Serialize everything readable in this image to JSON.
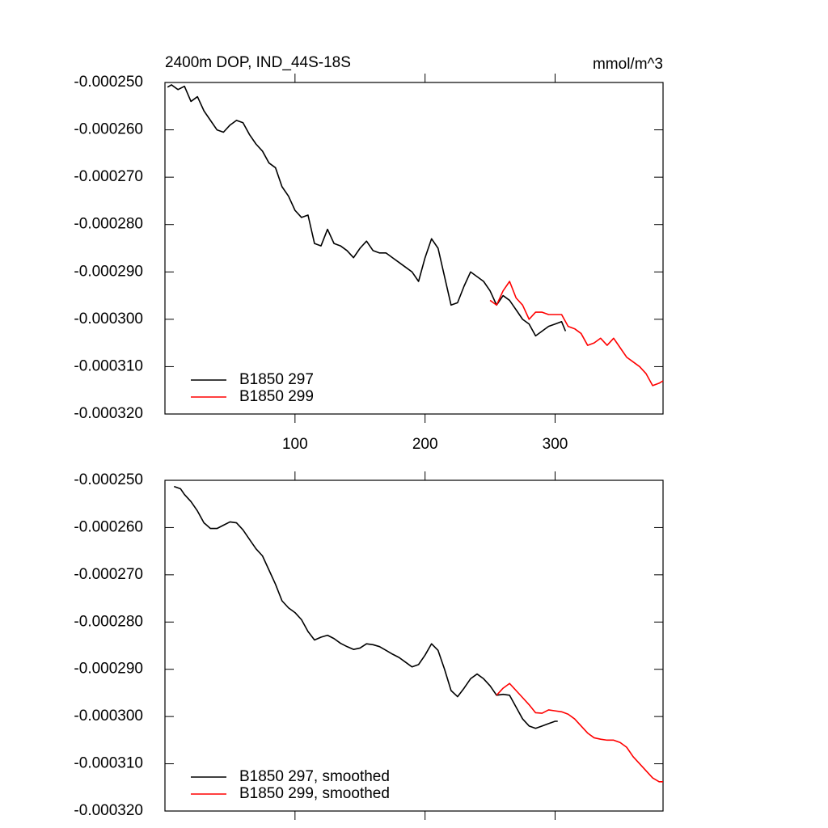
{
  "chart_data": [
    {
      "type": "line",
      "title": "2400m DOP, IND_44S-18S",
      "units": "mmol/m^3",
      "xlim": [
        0,
        383
      ],
      "xticks": [
        100,
        200,
        300
      ],
      "xtick_labels": true,
      "ylim": [
        -0.00032,
        -0.00025
      ],
      "yticks": [
        {
          "value": -0.00032,
          "label": "-0.000320"
        },
        {
          "value": -0.00031,
          "label": "-0.000310"
        },
        {
          "value": -0.0003,
          "label": "-0.000300"
        },
        {
          "value": -0.00029,
          "label": "-0.000290"
        },
        {
          "value": -0.00028,
          "label": "-0.000280"
        },
        {
          "value": -0.00027,
          "label": "-0.000270"
        },
        {
          "value": -0.00026,
          "label": "-0.000260"
        },
        {
          "value": -0.00025,
          "label": "-0.000250"
        }
      ],
      "legend": "lower left",
      "series": [
        {
          "name": "B1850 297",
          "color": "#000000",
          "x": [
            2,
            5,
            10,
            15,
            20,
            25,
            30,
            35,
            40,
            45,
            50,
            55,
            60,
            65,
            70,
            75,
            80,
            85,
            90,
            95,
            100,
            105,
            110,
            115,
            120,
            125,
            130,
            135,
            140,
            145,
            150,
            155,
            160,
            165,
            170,
            175,
            180,
            185,
            190,
            195,
            200,
            205,
            210,
            215,
            220,
            225,
            230,
            235,
            240,
            245,
            250,
            255,
            260,
            265,
            270,
            275,
            280,
            285,
            290,
            295,
            300,
            305,
            308
          ],
          "values": [
            -0.000251,
            -0.0002505,
            -0.0002515,
            -0.0002508,
            -0.000254,
            -0.000253,
            -0.000256,
            -0.000258,
            -0.00026,
            -0.0002605,
            -0.000259,
            -0.000258,
            -0.0002585,
            -0.000261,
            -0.000263,
            -0.0002645,
            -0.000267,
            -0.000268,
            -0.000272,
            -0.000274,
            -0.000277,
            -0.0002785,
            -0.000278,
            -0.000284,
            -0.0002845,
            -0.000281,
            -0.000284,
            -0.0002845,
            -0.0002855,
            -0.000287,
            -0.000285,
            -0.0002835,
            -0.0002855,
            -0.000286,
            -0.000286,
            -0.000287,
            -0.000288,
            -0.000289,
            -0.00029,
            -0.000292,
            -0.000287,
            -0.000283,
            -0.000285,
            -0.000291,
            -0.000297,
            -0.0002965,
            -0.000293,
            -0.00029,
            -0.000291,
            -0.000292,
            -0.000294,
            -0.000297,
            -0.000295,
            -0.000296,
            -0.000298,
            -0.0003,
            -0.000301,
            -0.0003035,
            -0.0003025,
            -0.0003015,
            -0.000301,
            -0.0003005,
            -0.0003025
          ]
        },
        {
          "name": "B1850 299",
          "color": "#ff0000",
          "x": [
            250,
            255,
            260,
            265,
            270,
            275,
            280,
            285,
            290,
            295,
            300,
            305,
            310,
            315,
            320,
            325,
            330,
            335,
            340,
            345,
            350,
            355,
            360,
            365,
            370,
            375,
            380,
            383
          ],
          "values": [
            -0.000296,
            -0.000297,
            -0.000294,
            -0.000292,
            -0.0002955,
            -0.000297,
            -0.0003,
            -0.0002985,
            -0.0002985,
            -0.000299,
            -0.000299,
            -0.000299,
            -0.0003015,
            -0.000302,
            -0.000303,
            -0.0003055,
            -0.000305,
            -0.000304,
            -0.0003055,
            -0.000304,
            -0.000306,
            -0.000308,
            -0.000309,
            -0.00031,
            -0.0003115,
            -0.000314,
            -0.0003135,
            -0.000313
          ]
        }
      ]
    },
    {
      "type": "line",
      "xlim": [
        0,
        383
      ],
      "xticks": [
        100,
        200,
        300
      ],
      "xtick_labels": false,
      "ylim": [
        -0.00032,
        -0.00025
      ],
      "yticks": [
        {
          "value": -0.00032,
          "label": "-0.000320"
        },
        {
          "value": -0.00031,
          "label": "-0.000310"
        },
        {
          "value": -0.0003,
          "label": "-0.000300"
        },
        {
          "value": -0.00029,
          "label": "-0.000290"
        },
        {
          "value": -0.00028,
          "label": "-0.000280"
        },
        {
          "value": -0.00027,
          "label": "-0.000270"
        },
        {
          "value": -0.00026,
          "label": "-0.000260"
        },
        {
          "value": -0.00025,
          "label": "-0.000250"
        }
      ],
      "legend": "lower left",
      "series": [
        {
          "name": "B1850 297, smoothed",
          "color": "#000000",
          "x": [
            7,
            12,
            15,
            20,
            25,
            30,
            35,
            40,
            45,
            50,
            55,
            60,
            65,
            70,
            75,
            80,
            85,
            90,
            95,
            100,
            105,
            110,
            115,
            120,
            125,
            130,
            135,
            140,
            145,
            150,
            155,
            160,
            165,
            170,
            175,
            180,
            185,
            190,
            195,
            200,
            205,
            210,
            215,
            220,
            225,
            230,
            235,
            240,
            245,
            250,
            255,
            260,
            265,
            270,
            275,
            280,
            285,
            290,
            295,
            300,
            302
          ],
          "values": [
            -0.0002513,
            -0.0002518,
            -0.000253,
            -0.0002545,
            -0.0002565,
            -0.000259,
            -0.0002602,
            -0.0002602,
            -0.0002595,
            -0.0002588,
            -0.000259,
            -0.0002605,
            -0.0002625,
            -0.0002645,
            -0.000266,
            -0.000269,
            -0.000272,
            -0.0002755,
            -0.000277,
            -0.000278,
            -0.0002795,
            -0.000282,
            -0.0002838,
            -0.0002832,
            -0.0002828,
            -0.0002835,
            -0.0002845,
            -0.0002852,
            -0.0002858,
            -0.0002855,
            -0.0002846,
            -0.0002848,
            -0.0002852,
            -0.000286,
            -0.0002868,
            -0.0002875,
            -0.0002885,
            -0.0002895,
            -0.000289,
            -0.000287,
            -0.0002846,
            -0.000286,
            -0.00029,
            -0.0002945,
            -0.0002958,
            -0.000294,
            -0.000292,
            -0.000291,
            -0.000292,
            -0.0002935,
            -0.0002955,
            -0.0002953,
            -0.0002955,
            -0.000298,
            -0.0003005,
            -0.000302,
            -0.0003025,
            -0.000302,
            -0.0003015,
            -0.000301,
            -0.000301
          ]
        },
        {
          "name": "B1850 299, smoothed",
          "color": "#ff0000",
          "x": [
            255,
            260,
            265,
            270,
            275,
            280,
            285,
            290,
            295,
            300,
            305,
            310,
            315,
            320,
            325,
            330,
            335,
            340,
            345,
            350,
            355,
            360,
            365,
            370,
            375,
            380,
            383
          ],
          "values": [
            -0.0002955,
            -0.000294,
            -0.000293,
            -0.0002945,
            -0.000296,
            -0.0002975,
            -0.0002992,
            -0.0002993,
            -0.0002986,
            -0.0002988,
            -0.000299,
            -0.0002995,
            -0.0003005,
            -0.000302,
            -0.0003035,
            -0.0003045,
            -0.0003048,
            -0.000305,
            -0.000305,
            -0.0003055,
            -0.0003065,
            -0.0003085,
            -0.00031,
            -0.0003115,
            -0.000313,
            -0.0003138,
            -0.0003138
          ]
        }
      ]
    }
  ]
}
